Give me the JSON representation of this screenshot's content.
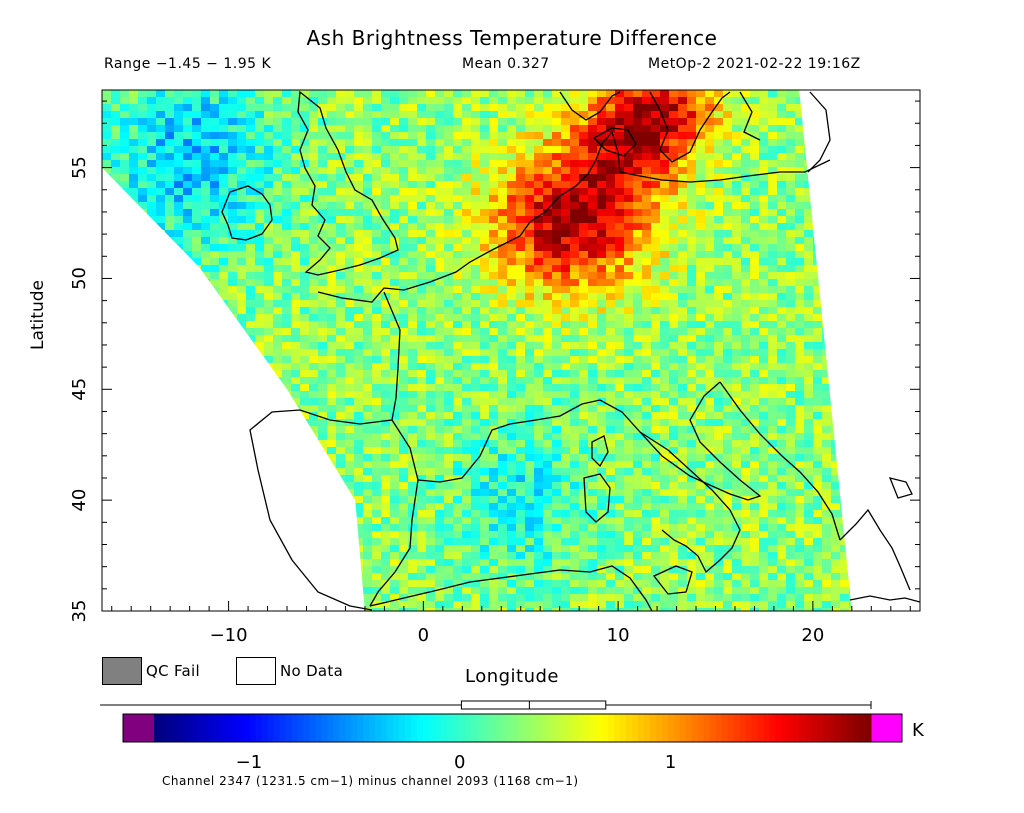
{
  "header": {
    "title": "Ash Brightness Temperature Difference",
    "range": "Range −1.45 − 1.95 K",
    "mean": "Mean 0.327",
    "satellite": "MetOp-2 2021-02-22 19:16Z"
  },
  "footer": {
    "channel_note": "Channel 2347 (1231.5 cm−1) minus channel 2093 (1168 cm−1)"
  },
  "legend": {
    "qc_fail": "QC Fail",
    "no_data": "No Data",
    "qc_fail_color": "#808080",
    "no_data_color": "#ffffff"
  },
  "colorbar": {
    "unit": "K",
    "ticks": [
      {
        "value": -1,
        "label": "−1"
      },
      {
        "value": 0,
        "label": "0"
      },
      {
        "value": 1,
        "label": "1"
      }
    ],
    "min": -1.45,
    "max": 1.95,
    "underflow_color": "#800080",
    "overflow_color": "#ff00ff",
    "box_plot": {
      "q1": 0.15,
      "median": 0.33,
      "q3": 0.55,
      "whisker_low": -1.45,
      "whisker_high": 1.95
    }
  },
  "chart_data": {
    "type": "heatmap",
    "title": "Ash Brightness Temperature Difference",
    "xlabel": "Longitude",
    "ylabel": "Latitude",
    "xlim": [
      -16.5,
      25.5
    ],
    "ylim": [
      35,
      58.5
    ],
    "x_ticks": [
      {
        "value": -10,
        "label": "−10"
      },
      {
        "value": 0,
        "label": "0"
      },
      {
        "value": 10,
        "label": "10"
      },
      {
        "value": 20,
        "label": "20"
      }
    ],
    "y_ticks": [
      {
        "value": 35,
        "label": "35"
      },
      {
        "value": 40,
        "label": "40"
      },
      {
        "value": 45,
        "label": "45"
      },
      {
        "value": 50,
        "label": "50"
      },
      {
        "value": 55,
        "label": "55"
      }
    ],
    "swath_polygon": [
      [
        -16.5,
        55
      ],
      [
        -11.5,
        50.5
      ],
      [
        -7,
        45
      ],
      [
        -3.5,
        40
      ],
      [
        -3,
        35
      ],
      [
        22,
        35
      ],
      [
        19.3,
        58.5
      ],
      [
        -16.5,
        58.5
      ]
    ],
    "hotspots": [
      {
        "lon": 7.5,
        "lat": 52.5,
        "value": 1.8,
        "radius": 2.8
      },
      {
        "lon": 10.5,
        "lat": 56,
        "value": 1.4,
        "radius": 2.2
      },
      {
        "lon": 12.5,
        "lat": 58,
        "value": 1.3,
        "radius": 2.0
      }
    ],
    "lowspots": [
      {
        "lon": -12,
        "lat": 55.5,
        "value": -0.8,
        "radius": 3.0
      },
      {
        "lon": 5,
        "lat": 40,
        "value": -0.4,
        "radius": 2.5
      }
    ],
    "base_value": 0.3
  }
}
